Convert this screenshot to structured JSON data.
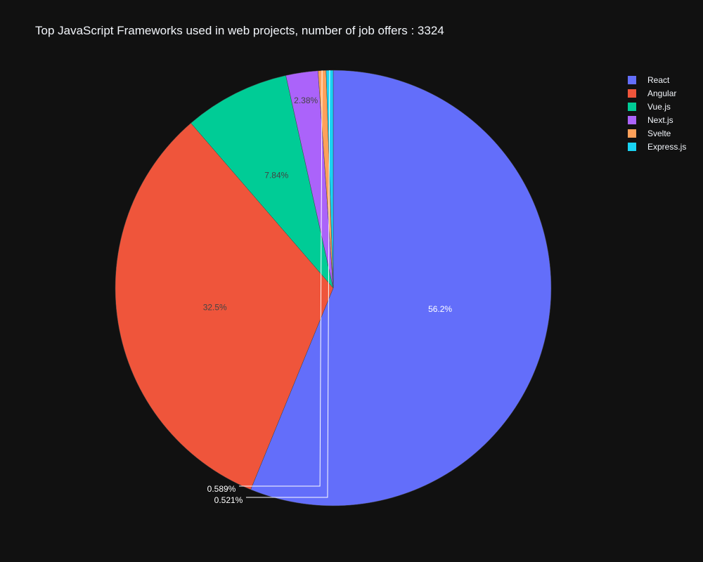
{
  "chart_data": {
    "type": "pie",
    "title": "Top JavaScript Frameworks used in web projects, number of job offers : 3324",
    "labels": [
      "React",
      "Angular",
      "Vue.js",
      "Next.js",
      "Svelte",
      "Express.js"
    ],
    "values": [
      56.2,
      32.5,
      7.84,
      2.38,
      0.589,
      0.521
    ],
    "percent_labels": [
      "56.2%",
      "32.5%",
      "7.84%",
      "2.38%",
      "0.589%",
      "0.521%"
    ],
    "colors": [
      "#636efa",
      "#ef553b",
      "#00cc96",
      "#ab63fa",
      "#ffa15a",
      "#19d3f3"
    ],
    "legend_position": "top-right",
    "direction": "clockwise",
    "start": "12 o'clock"
  }
}
